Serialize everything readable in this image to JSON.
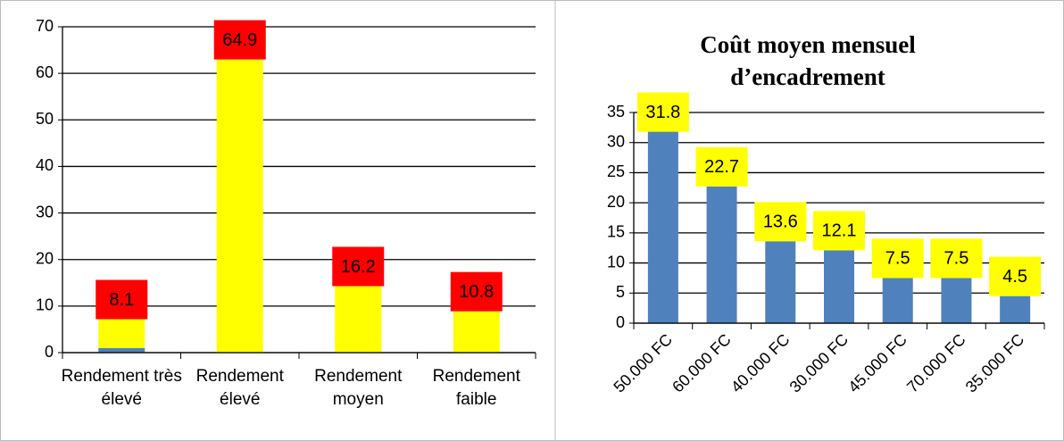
{
  "chart_data": [
    {
      "type": "bar",
      "stacked": true,
      "categories": [
        "Rendement très élevé",
        "Rendement élevé",
        "Rendement moyen",
        "Rendement faible"
      ],
      "series": [
        {
          "color": "#4f81bd",
          "values": [
            1,
            null,
            null,
            null
          ]
        },
        {
          "color": "#ffff00",
          "values": [
            8.1,
            64.9,
            16.2,
            10.8
          ],
          "label_color": "#ff0000"
        }
      ],
      "ylim": [
        0,
        70
      ],
      "yticks": [
        0,
        10,
        20,
        30,
        40,
        50,
        60,
        70
      ],
      "grid": true
    },
    {
      "type": "bar",
      "title": "Coût moyen mensuel d’encadrement",
      "categories": [
        "50.000 FC",
        "60.000 FC",
        "40.000 FC",
        "30.000 FC",
        "45.000 FC",
        "70.000 FC",
        "35.000 FC"
      ],
      "series": [
        {
          "color": "#4f81bd",
          "values": [
            31.8,
            22.7,
            13.6,
            12.1,
            7.5,
            7.5,
            4.5
          ],
          "label_color": "#ffff00"
        }
      ],
      "ylim": [
        0,
        35
      ],
      "yticks": [
        0,
        5,
        10,
        15,
        20,
        25,
        30,
        35
      ],
      "grid": true
    }
  ]
}
